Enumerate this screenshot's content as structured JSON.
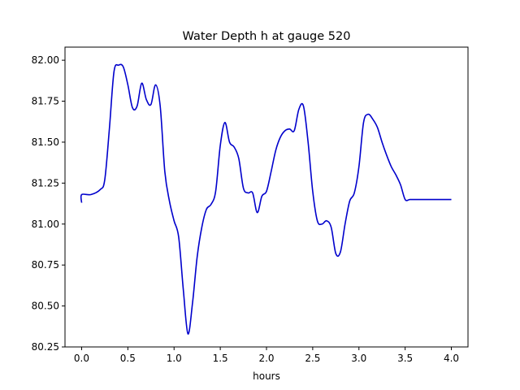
{
  "chart_data": {
    "type": "line",
    "title": "Water Depth h at gauge 520",
    "xlabel": "hours",
    "ylabel": "",
    "xlim": [
      -0.18,
      4.18
    ],
    "ylim": [
      80.25,
      82.08
    ],
    "grid": false,
    "x_ticks": [
      0.0,
      0.5,
      1.0,
      1.5,
      2.0,
      2.5,
      3.0,
      3.5,
      4.0
    ],
    "x_tick_labels": [
      "0.0",
      "0.5",
      "1.0",
      "1.5",
      "2.0",
      "2.5",
      "3.0",
      "3.5",
      "4.0"
    ],
    "y_ticks": [
      80.25,
      80.5,
      80.75,
      81.0,
      81.25,
      81.5,
      81.75,
      82.0
    ],
    "y_tick_labels": [
      "80.25",
      "80.50",
      "80.75",
      "81.00",
      "81.25",
      "81.50",
      "81.75",
      "82.00"
    ],
    "series": [
      {
        "color": "#0000cc",
        "x": [
          0.0,
          0.0,
          0.1,
          0.2,
          0.25,
          0.3,
          0.35,
          0.4,
          0.45,
          0.5,
          0.55,
          0.6,
          0.65,
          0.7,
          0.75,
          0.8,
          0.85,
          0.9,
          0.95,
          1.0,
          1.05,
          1.1,
          1.15,
          1.2,
          1.25,
          1.3,
          1.35,
          1.4,
          1.45,
          1.5,
          1.55,
          1.6,
          1.65,
          1.7,
          1.75,
          1.8,
          1.85,
          1.9,
          1.95,
          2.0,
          2.05,
          2.1,
          2.15,
          2.2,
          2.25,
          2.3,
          2.35,
          2.4,
          2.45,
          2.5,
          2.55,
          2.6,
          2.65,
          2.7,
          2.75,
          2.8,
          2.85,
          2.9,
          2.95,
          3.0,
          3.05,
          3.1,
          3.15,
          3.2,
          3.25,
          3.3,
          3.35,
          3.4,
          3.45,
          3.5,
          3.55,
          3.6,
          3.65,
          3.7,
          3.75,
          3.8,
          3.85,
          3.9,
          3.95,
          4.0
        ],
        "values": [
          81.13,
          81.18,
          81.18,
          81.21,
          81.27,
          81.58,
          81.93,
          81.97,
          81.96,
          81.85,
          81.71,
          81.72,
          81.86,
          81.76,
          81.73,
          81.85,
          81.72,
          81.32,
          81.14,
          81.02,
          80.92,
          80.6,
          80.33,
          80.52,
          80.8,
          80.98,
          81.09,
          81.12,
          81.2,
          81.48,
          81.62,
          81.5,
          81.47,
          81.4,
          81.22,
          81.19,
          81.19,
          81.07,
          81.17,
          81.2,
          81.32,
          81.45,
          81.53,
          81.57,
          81.58,
          81.57,
          81.7,
          81.72,
          81.5,
          81.2,
          81.02,
          81.0,
          81.02,
          80.98,
          80.82,
          80.83,
          81.0,
          81.14,
          81.19,
          81.35,
          81.62,
          81.67,
          81.64,
          81.59,
          81.5,
          81.42,
          81.35,
          81.3,
          81.24,
          81.15,
          81.15,
          81.15,
          81.15,
          81.15,
          81.15,
          81.15,
          81.15,
          81.15,
          81.15,
          81.15
        ]
      }
    ]
  }
}
